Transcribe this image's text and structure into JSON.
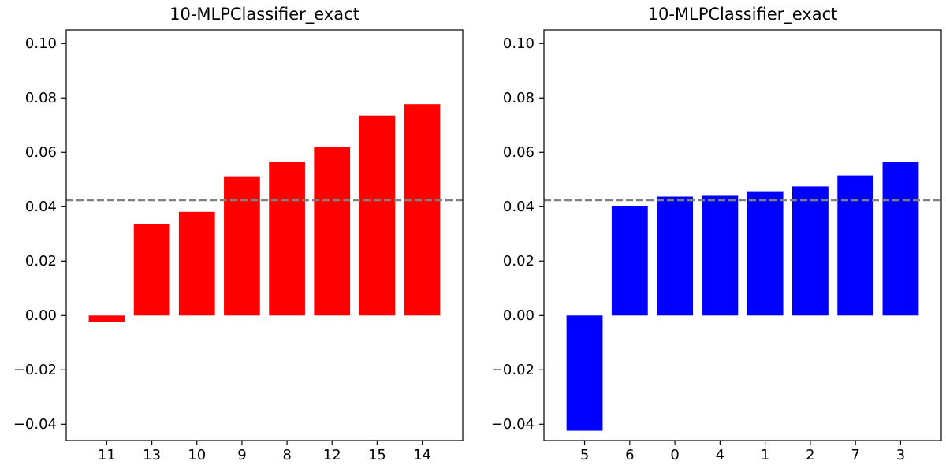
{
  "chart_data": [
    {
      "type": "bar",
      "title": "10-MLPClassifier_exact",
      "xlabel": "",
      "ylabel": "",
      "categories": [
        "11",
        "13",
        "10",
        "9",
        "8",
        "12",
        "15",
        "14"
      ],
      "values": [
        -0.0025,
        0.0337,
        0.0381,
        0.0512,
        0.0565,
        0.0621,
        0.0735,
        0.0777
      ],
      "bar_color": "#ff0000",
      "reference_line": 0.0424,
      "reference_line_color": "#808080",
      "ylim": [
        -0.046,
        0.105
      ],
      "yticks": [
        -0.04,
        -0.02,
        0.0,
        0.02,
        0.04,
        0.06,
        0.08,
        0.1
      ],
      "ytick_labels": [
        "−0.04",
        "−0.02",
        "0.00",
        "0.02",
        "0.04",
        "0.06",
        "0.08",
        "0.10"
      ],
      "grid": false,
      "legend": "none"
    },
    {
      "type": "bar",
      "title": "10-MLPClassifier_exact",
      "xlabel": "",
      "ylabel": "",
      "categories": [
        "5",
        "6",
        "0",
        "4",
        "1",
        "2",
        "7",
        "3"
      ],
      "values": [
        -0.0424,
        0.0402,
        0.0437,
        0.044,
        0.0457,
        0.0475,
        0.0515,
        0.0565
      ],
      "bar_color": "#0000ff",
      "reference_line": 0.0424,
      "reference_line_color": "#808080",
      "ylim": [
        -0.046,
        0.105
      ],
      "yticks": [
        -0.04,
        -0.02,
        0.0,
        0.02,
        0.04,
        0.06,
        0.08,
        0.1
      ],
      "ytick_labels": [
        "−0.04",
        "−0.02",
        "0.00",
        "0.02",
        "0.04",
        "0.06",
        "0.08",
        "0.10"
      ],
      "grid": false,
      "legend": "none"
    }
  ]
}
